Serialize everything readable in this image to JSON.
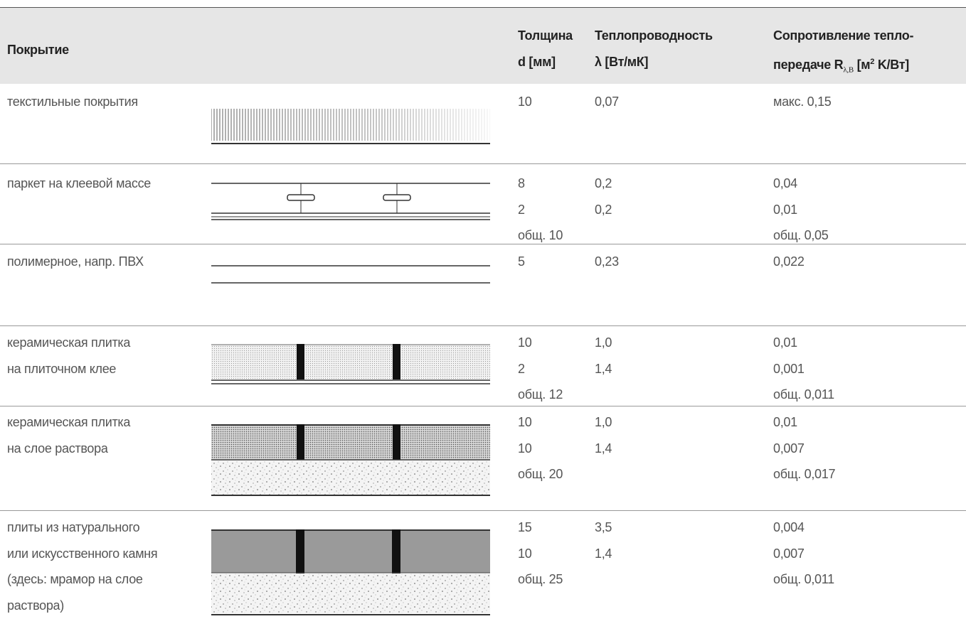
{
  "header": {
    "cover": "Покрытие",
    "thickness": [
      "Толщина",
      "d [мм]"
    ],
    "conductivity": [
      "Теплопроводность",
      "λ [Вт/мК]"
    ],
    "resistance": {
      "line1": "Сопротивление тепло-",
      "line2": "передаче R",
      "subscript": "λ,В",
      "unit_before": "[м",
      "superscript": "2",
      "unit_after": "K/Вт]"
    }
  },
  "rows": [
    {
      "cover": [
        "текстильные покрытия"
      ],
      "thickness": [
        "10"
      ],
      "conductivity": [
        "0,07"
      ],
      "resistance": [
        "макс. 0,15"
      ]
    },
    {
      "cover": [
        "паркет на клеевой массе"
      ],
      "thickness": [
        "8",
        "2",
        "общ. 10"
      ],
      "conductivity": [
        "0,2",
        "0,2"
      ],
      "resistance": [
        "0,04",
        "0,01",
        "общ. 0,05"
      ]
    },
    {
      "cover": [
        "полимерное, напр. ПВХ"
      ],
      "thickness": [
        "5"
      ],
      "conductivity": [
        "0,23"
      ],
      "resistance": [
        "0,022"
      ]
    },
    {
      "cover": [
        "керамическая плитка",
        "на плиточном клее"
      ],
      "thickness": [
        "10",
        "2",
        "общ. 12"
      ],
      "conductivity": [
        "1,0",
        "1,4"
      ],
      "resistance": [
        "0,01",
        "0,001",
        "общ. 0,011"
      ]
    },
    {
      "cover": [
        "керамическая плитка",
        "на слое раствора"
      ],
      "thickness": [
        "10",
        "10",
        "общ. 20"
      ],
      "conductivity": [
        "1,0",
        "1,4"
      ],
      "resistance": [
        "0,01",
        "0,007",
        "общ. 0,017"
      ]
    },
    {
      "cover": [
        "плиты из натурального",
        "или искусственного камня",
        "(здесь: мрамор на слое",
        "раствора)"
      ],
      "thickness": [
        "15",
        "10",
        "общ. 25"
      ],
      "conductivity": [
        "3,5",
        "1,4"
      ],
      "resistance": [
        "0,004",
        "0,007",
        "общ. 0,011"
      ]
    }
  ]
}
